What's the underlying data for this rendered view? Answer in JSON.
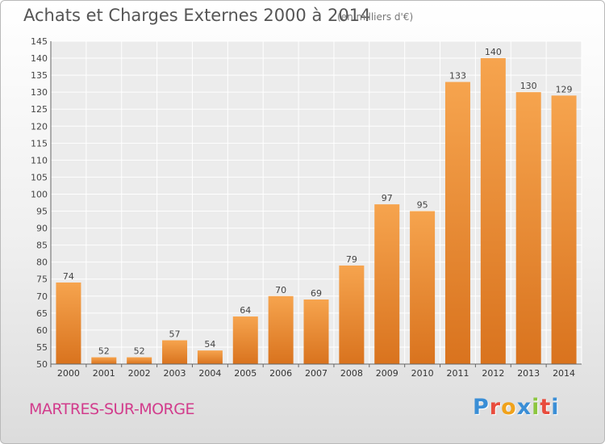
{
  "header": {
    "title": "Achats et Charges Externes 2000 à 2014",
    "subtitle": "(en milliers d'€)"
  },
  "footer": {
    "place_name": "MARTRES-SUR-MORGE",
    "logo_letters": [
      "P",
      "r",
      "o",
      "x",
      "i",
      "t",
      "i"
    ]
  },
  "colors": {
    "bar_light": "#f6a44e",
    "bar_dark": "#d9731e",
    "title": "#555555",
    "place_name": "#d23c8c",
    "logo": [
      "#3a8ed6",
      "#e84c3d",
      "#f0a21b",
      "#3a8ed6",
      "#8cc63f",
      "#e84c3d",
      "#3a8ed6"
    ]
  },
  "chart_data": {
    "type": "bar",
    "title": "Achats et Charges Externes 2000 à 2014",
    "subtitle": "(en milliers d'€)",
    "categories": [
      "2000",
      "2001",
      "2002",
      "2003",
      "2004",
      "2005",
      "2006",
      "2007",
      "2008",
      "2009",
      "2010",
      "2011",
      "2012",
      "2013",
      "2014"
    ],
    "values": [
      74,
      52,
      52,
      57,
      54,
      64,
      70,
      69,
      79,
      97,
      95,
      133,
      140,
      130,
      129
    ],
    "ylim": [
      50,
      145
    ],
    "yticks": [
      50,
      55,
      60,
      65,
      70,
      75,
      80,
      85,
      90,
      95,
      100,
      105,
      110,
      115,
      120,
      125,
      130,
      135,
      140,
      145
    ],
    "grid": true,
    "data_labels": true,
    "xlabel": "",
    "ylabel": ""
  }
}
